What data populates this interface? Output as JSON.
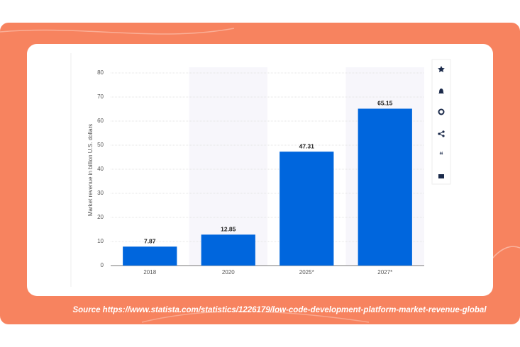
{
  "chart_data": {
    "type": "bar",
    "y_label": "Market revenue in billion U.S. dollars",
    "categories": [
      "2018",
      "2020",
      "2025*",
      "2027*"
    ],
    "values": [
      7.87,
      12.85,
      47.31,
      65.15
    ],
    "color": "#0066dd",
    "ylim": [
      0,
      80
    ],
    "yticks": [
      0,
      10,
      20,
      30,
      40,
      50,
      60,
      70,
      80
    ],
    "grid": true,
    "source": "Source https://www.statista.com/statistics/1226179/low-code-development-platform-market-revenue-global"
  }
}
